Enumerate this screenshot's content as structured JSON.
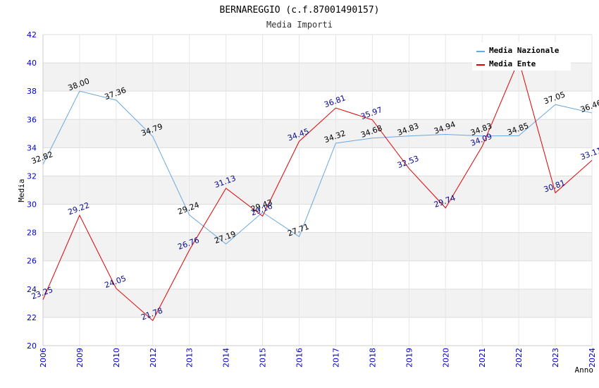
{
  "chart_data": {
    "type": "line",
    "title": "BERNAREGGIO (c.f.87001490157)",
    "subtitle": "Media Importi",
    "xlabel": "Anno",
    "ylabel": "Media",
    "ylim": [
      20,
      42
    ],
    "ytick_step": 2,
    "grid": true,
    "legend_position": "top-right",
    "categories": [
      "2006",
      "2009",
      "2010",
      "2012",
      "2013",
      "2014",
      "2015",
      "2016",
      "2017",
      "2018",
      "2019",
      "2020",
      "2021",
      "2022",
      "2023",
      "2024"
    ],
    "series": [
      {
        "name": "Media Nazionale",
        "color": "#6aa8e0",
        "label_color": "#000000",
        "values": [
          32.82,
          38.0,
          37.36,
          34.79,
          29.24,
          27.19,
          29.43,
          27.71,
          34.32,
          34.68,
          34.83,
          34.94,
          34.83,
          34.85,
          37.05,
          36.46
        ]
      },
      {
        "name": "Media Ente",
        "color": "#e00000",
        "label_color": "#0a0a8a",
        "values": [
          23.25,
          29.22,
          24.05,
          21.78,
          26.76,
          31.13,
          29.16,
          34.45,
          36.81,
          35.97,
          32.53,
          29.74,
          34.09,
          40.2,
          30.81,
          33.11
        ]
      }
    ]
  }
}
